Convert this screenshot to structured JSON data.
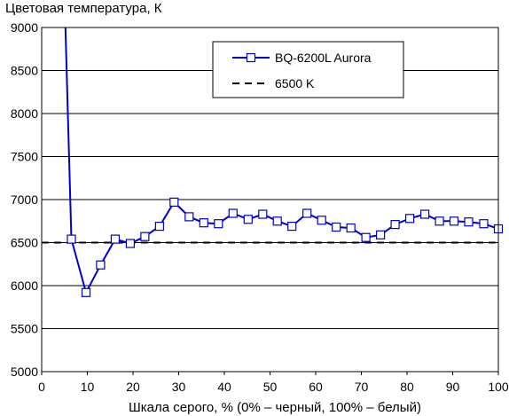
{
  "chart_data": {
    "type": "line",
    "title": "",
    "ylabel": "Цветовая температура, К",
    "xlabel": "Шкала серого, % (0% – черный, 100% – белый)",
    "xlim": [
      0,
      100
    ],
    "ylim": [
      5000,
      9000
    ],
    "xticks": [
      "0",
      "10",
      "20",
      "30",
      "40",
      "50",
      "60",
      "70",
      "80",
      "90",
      "100"
    ],
    "yticks": [
      "5000",
      "5500",
      "6000",
      "6500",
      "7000",
      "7500",
      "8000",
      "8500",
      "9000"
    ],
    "grid": "horizontal",
    "legend_position": "top-right",
    "series": [
      {
        "name": "BQ-6200L Aurora",
        "color": "#0000cc",
        "marker": "square",
        "x": [
          5.2,
          6.5,
          9.7,
          12.9,
          16.1,
          19.4,
          22.6,
          25.8,
          29.0,
          32.3,
          35.5,
          38.7,
          41.9,
          45.2,
          48.4,
          51.6,
          54.8,
          58.1,
          61.3,
          64.5,
          67.7,
          71.0,
          74.2,
          77.4,
          80.6,
          83.9,
          87.1,
          90.3,
          93.5,
          96.8,
          100
        ],
        "y": [
          9000,
          6540,
          5920,
          6240,
          6540,
          6490,
          6570,
          6690,
          6970,
          6800,
          6730,
          6720,
          6840,
          6770,
          6830,
          6750,
          6690,
          6840,
          6760,
          6680,
          6670,
          6560,
          6590,
          6710,
          6780,
          6830,
          6750,
          6750,
          6740,
          6720,
          6660
        ]
      },
      {
        "name": "6500 K",
        "color": "#000000",
        "style": "dashed",
        "x": [
          0,
          100
        ],
        "y": [
          6500,
          6500
        ]
      }
    ]
  }
}
